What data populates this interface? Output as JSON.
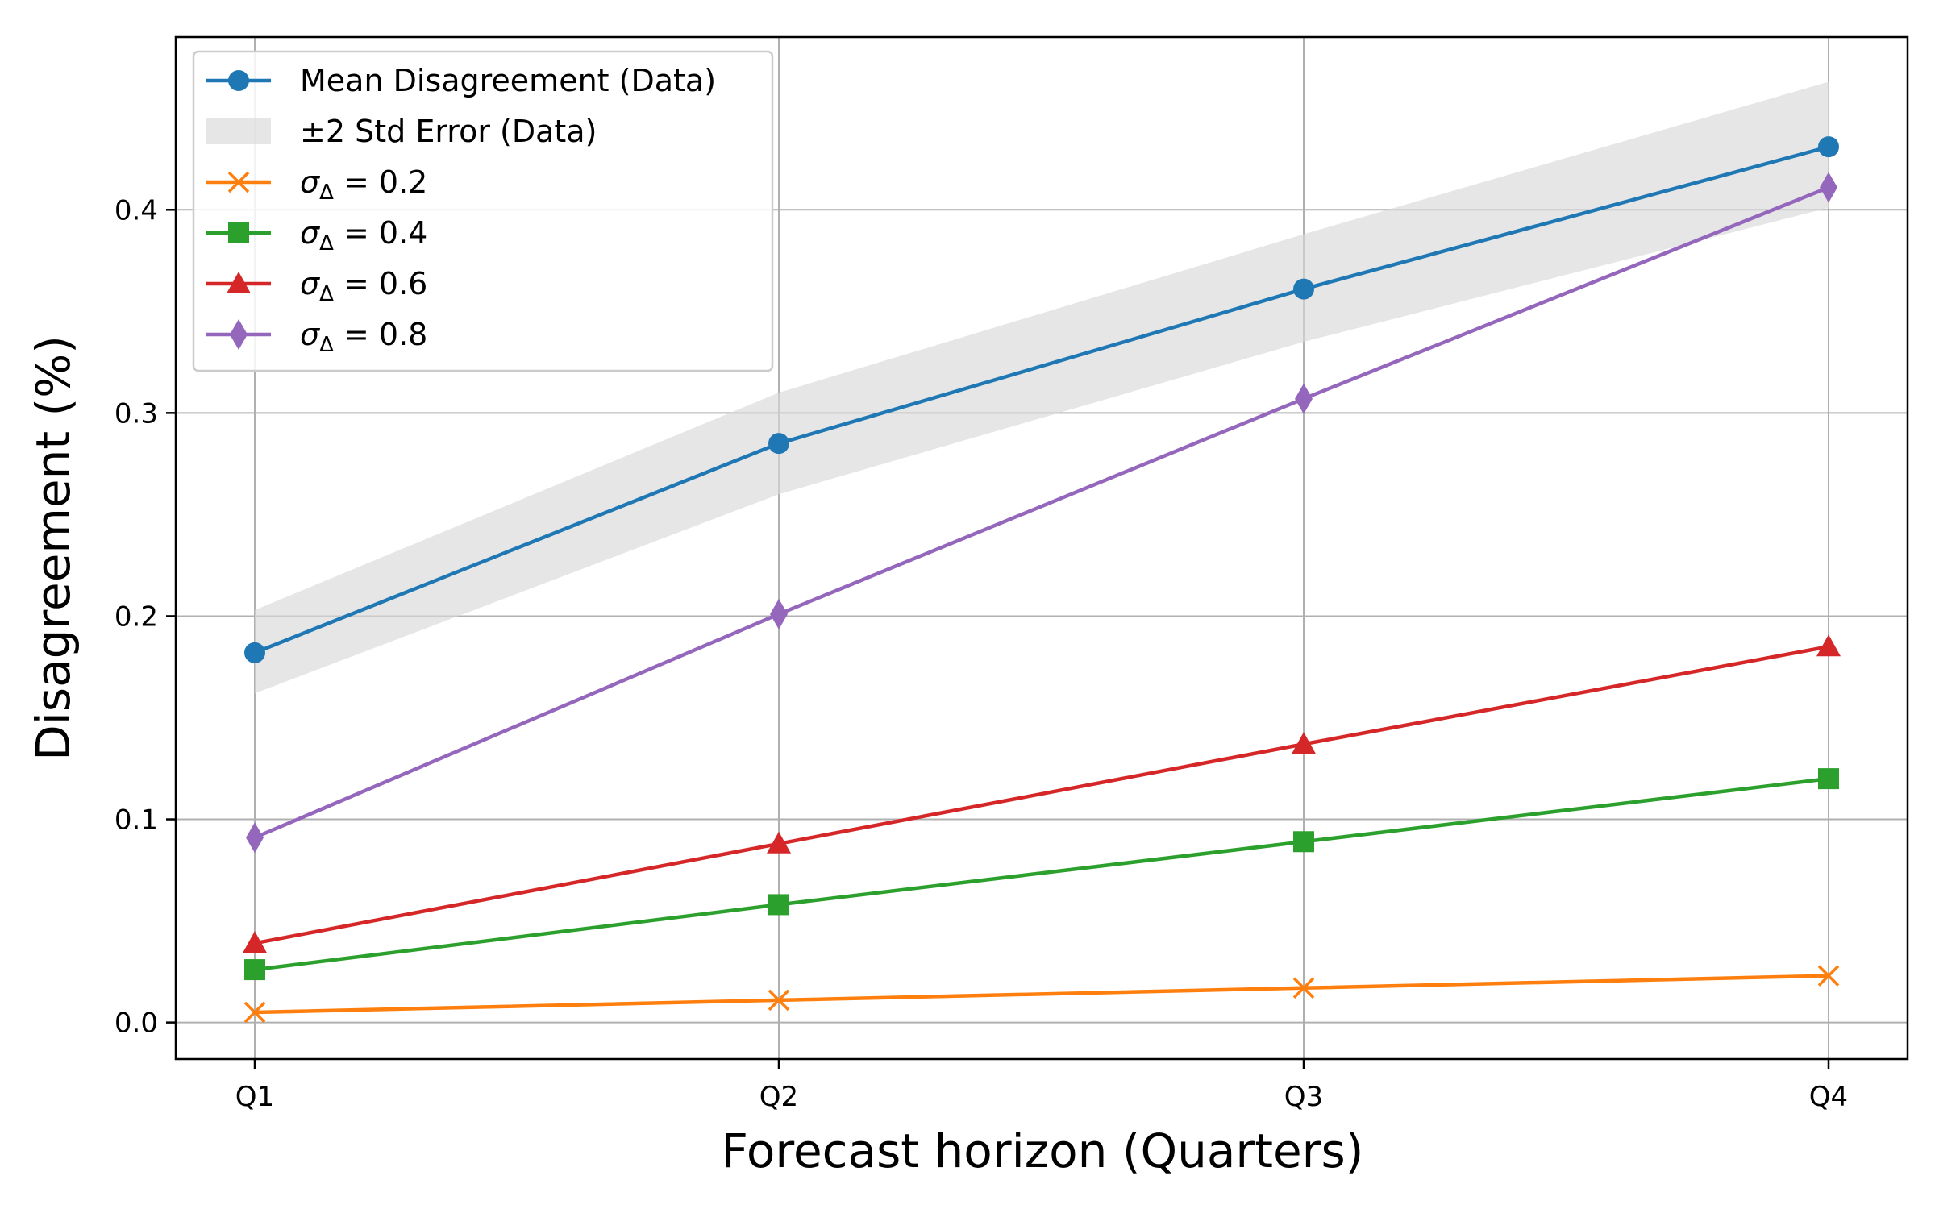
{
  "chart_data": {
    "type": "line",
    "title": "",
    "xlabel": "Forecast horizon (Quarters)",
    "ylabel": "Disagreement (%)",
    "categories": [
      "Q1",
      "Q2",
      "Q3",
      "Q4"
    ],
    "ylim": [
      -0.018,
      0.485
    ],
    "yticks": [
      0.0,
      0.1,
      0.2,
      0.3,
      0.4
    ],
    "ytick_labels": [
      "0.0",
      "0.1",
      "0.2",
      "0.3",
      "0.4"
    ],
    "grid": true,
    "legend_position": "top-left",
    "band": {
      "name": "±2 Std Error (Data)",
      "lower": [
        0.162,
        0.26,
        0.335,
        0.401
      ],
      "upper": [
        0.203,
        0.31,
        0.388,
        0.463
      ],
      "color": "#d9d9d9"
    },
    "series": [
      {
        "name": "Mean Disagreement (Data)",
        "label_plain": "Mean Disagreement (Data)",
        "values": [
          0.182,
          0.285,
          0.361,
          0.431
        ],
        "color": "#1f77b4",
        "marker": "circle"
      },
      {
        "name": "σΔ = 0.2",
        "label_sigma": "σ",
        "label_sub": "Δ",
        "label_rest": " = 0.2",
        "values": [
          0.005,
          0.011,
          0.017,
          0.023
        ],
        "color": "#ff7f0e",
        "marker": "x"
      },
      {
        "name": "σΔ = 0.4",
        "label_sigma": "σ",
        "label_sub": "Δ",
        "label_rest": " = 0.4",
        "values": [
          0.026,
          0.058,
          0.089,
          0.12
        ],
        "color": "#2ca02c",
        "marker": "square"
      },
      {
        "name": "σΔ = 0.6",
        "label_sigma": "σ",
        "label_sub": "Δ",
        "label_rest": " = 0.6",
        "values": [
          0.039,
          0.088,
          0.137,
          0.185
        ],
        "color": "#d62728",
        "marker": "triangle"
      },
      {
        "name": "σΔ = 0.8",
        "label_sigma": "σ",
        "label_sub": "Δ",
        "label_rest": " = 0.8",
        "values": [
          0.091,
          0.201,
          0.307,
          0.411
        ],
        "color": "#9467bd",
        "marker": "diamond"
      }
    ]
  }
}
